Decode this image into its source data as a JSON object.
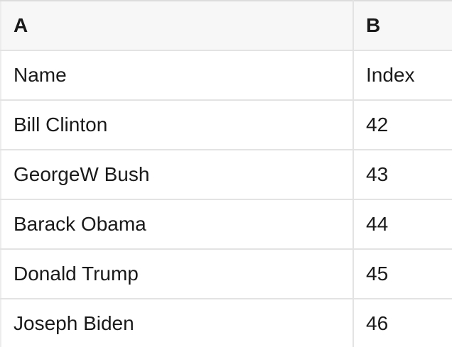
{
  "table": {
    "columns": [
      {
        "label": "A"
      },
      {
        "label": "B"
      }
    ],
    "rows": [
      {
        "a": "Name",
        "b": "Index"
      },
      {
        "a": "Bill Clinton",
        "b": "42"
      },
      {
        "a": "GeorgeW Bush",
        "b": "43"
      },
      {
        "a": "Barack Obama",
        "b": "44"
      },
      {
        "a": "Donald Trump",
        "b": "45"
      },
      {
        "a": "Joseph Biden",
        "b": "46"
      }
    ]
  },
  "colors": {
    "header_bg": "#f7f7f7",
    "row_bg": "#ffffff",
    "border": "#e3e3e3",
    "text": "#1a1a1a"
  }
}
